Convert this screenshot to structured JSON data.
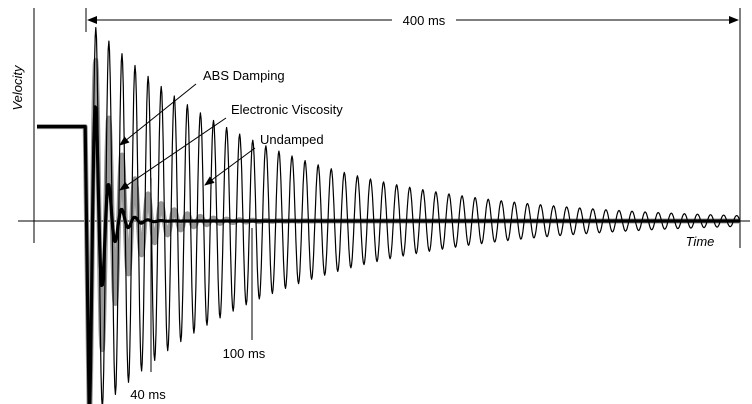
{
  "chart_data": {
    "type": "line",
    "title": "",
    "xlabel": "Time",
    "ylabel": "Velocity",
    "x_unit": "ms",
    "xlim": [
      -30,
      400
    ],
    "ylim": [
      -1.75,
      1.0
    ],
    "grid": false,
    "legend": "none",
    "dimension": {
      "label": "400 ms",
      "from": 0,
      "to": 400
    },
    "markers": [
      {
        "label": "40 ms",
        "x": 40
      },
      {
        "label": "100 ms",
        "x": 100
      }
    ],
    "series": [
      {
        "name": "Undamped",
        "color": "#000000",
        "style": "thin",
        "peak_amplitude": 1.7,
        "decay_ms": 110,
        "period_ms": 8
      },
      {
        "name": "ABS Damping",
        "color": "#999999",
        "style": "thick",
        "peak_amplitude": 1.7,
        "decay_ms": 18,
        "period_ms": 8
      },
      {
        "name": "Electronic Viscosity",
        "color": "#000000",
        "style": "extra-thick",
        "peak_amplitude": 1.7,
        "decay_ms": 7,
        "period_ms": 8
      }
    ],
    "initial_level": 0.8,
    "annotations": [
      "ABS Damping",
      "Electronic Viscosity",
      "Undamped"
    ]
  }
}
